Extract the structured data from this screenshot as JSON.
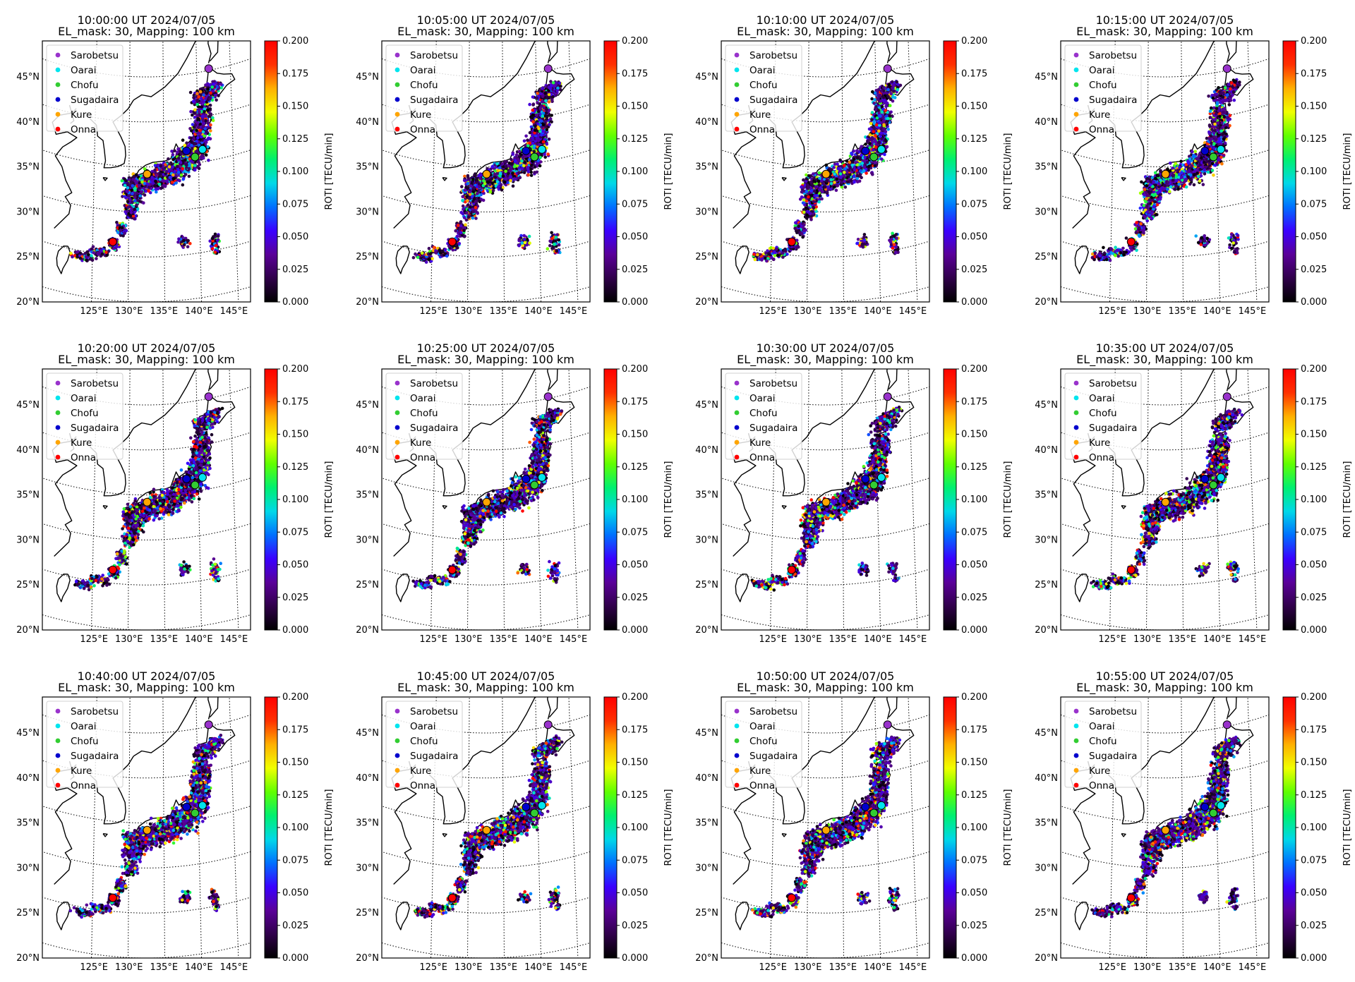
{
  "figure": {
    "subtitle": "EL_mask: 30, Mapping: 100 km",
    "colorbar_label": "ROTI [TECU/min]",
    "colorbar_ticks": [
      "0.000",
      "0.025",
      "0.050",
      "0.075",
      "0.100",
      "0.125",
      "0.150",
      "0.175",
      "0.200"
    ],
    "lat_ticks": [
      "45°N",
      "40°N",
      "35°N",
      "30°N",
      "25°N",
      "20°N"
    ],
    "lon_ticks": [
      "125°E",
      "130°E",
      "135°E",
      "140°E",
      "145°E"
    ],
    "colormap": [
      "#000000",
      "#30004a",
      "#5a0098",
      "#3a00ff",
      "#0070ff",
      "#00d8e8",
      "#00f070",
      "#60ff00",
      "#f0ff00",
      "#ffb000",
      "#ff3000",
      "#ff0000"
    ]
  },
  "legend": [
    {
      "label": "Sarobetsu",
      "color": "#9932cc"
    },
    {
      "label": "Oarai",
      "color": "#00e5ee"
    },
    {
      "label": "Chofu",
      "color": "#32cd32"
    },
    {
      "label": "Sugadaira",
      "color": "#0000cd"
    },
    {
      "label": "Kure",
      "color": "#ffa500"
    },
    {
      "label": "Onna",
      "color": "#ff0000"
    }
  ],
  "panels": [
    {
      "title": "10:00:00 UT 2024/07/05"
    },
    {
      "title": "10:05:00 UT 2024/07/05"
    },
    {
      "title": "10:10:00 UT 2024/07/05"
    },
    {
      "title": "10:15:00 UT 2024/07/05"
    },
    {
      "title": "10:20:00 UT 2024/07/05"
    },
    {
      "title": "10:25:00 UT 2024/07/05"
    },
    {
      "title": "10:30:00 UT 2024/07/05"
    },
    {
      "title": "10:35:00 UT 2024/07/05"
    },
    {
      "title": "10:40:00 UT 2024/07/05"
    },
    {
      "title": "10:45:00 UT 2024/07/05"
    },
    {
      "title": "10:50:00 UT 2024/07/05"
    },
    {
      "title": "10:55:00 UT 2024/07/05"
    }
  ]
}
